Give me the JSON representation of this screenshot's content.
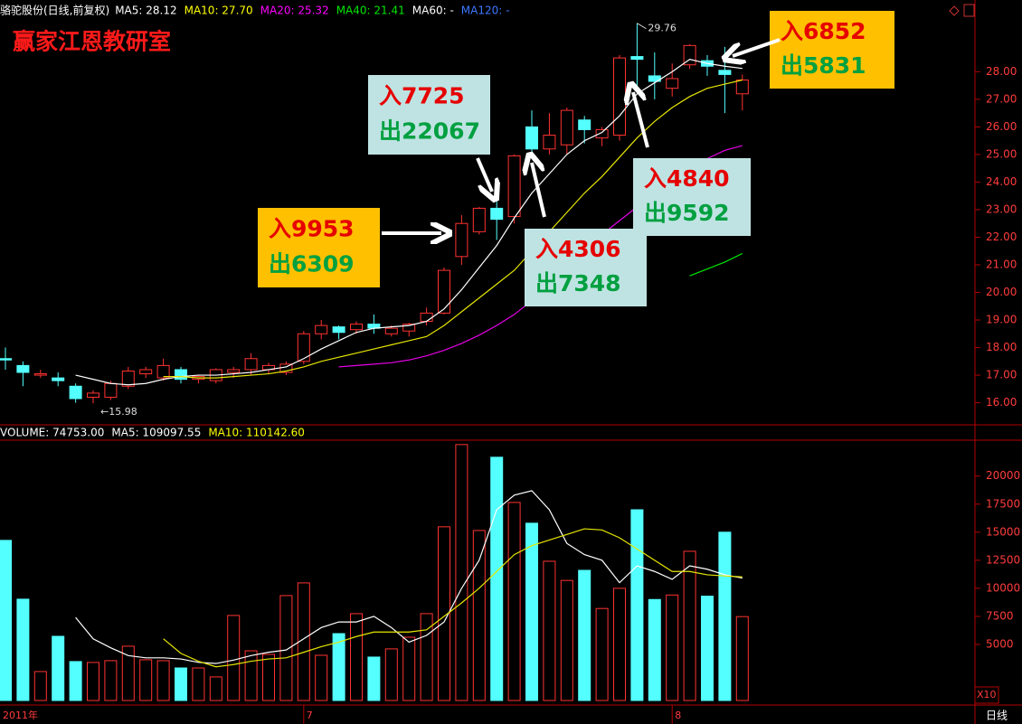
{
  "header": {
    "stock": "骆驼股份(日线,前复权)",
    "studio": "赢家江恩教研室",
    "period": "日线"
  },
  "chart_data": [
    {
      "type": "candlestick",
      "categories": [
        "2011年",
        null,
        null,
        null,
        null,
        null,
        null,
        null,
        null,
        null,
        null,
        null,
        null,
        null,
        null,
        null,
        null,
        "7",
        null,
        null,
        null,
        null,
        null,
        null,
        null,
        null,
        null,
        null,
        null,
        null,
        null,
        null,
        null,
        null,
        null,
        null,
        null,
        null,
        "8",
        null,
        null,
        null,
        null
      ],
      "open": [
        17.6,
        17.35,
        17.0,
        16.9,
        16.6,
        16.2,
        16.2,
        16.6,
        17.05,
        16.9,
        17.2,
        16.85,
        16.8,
        17.1,
        17.2,
        17.2,
        17.1,
        17.5,
        18.5,
        18.75,
        18.65,
        18.85,
        18.5,
        18.6,
        18.95,
        19.25,
        21.3,
        22.2,
        23.05,
        22.75,
        26.0,
        25.2,
        25.35,
        26.25,
        25.6,
        25.7,
        28.55,
        27.85,
        27.4,
        28.25,
        28.4,
        28.05,
        27.2
      ],
      "high": [
        18.0,
        17.5,
        17.2,
        17.1,
        16.7,
        16.45,
        16.8,
        17.3,
        17.3,
        17.6,
        17.3,
        17.0,
        17.25,
        17.3,
        17.8,
        17.45,
        17.5,
        18.6,
        19.0,
        18.8,
        18.95,
        19.2,
        18.8,
        18.9,
        19.45,
        20.9,
        22.8,
        23.1,
        23.4,
        25.0,
        26.6,
        26.5,
        26.7,
        26.4,
        26.0,
        28.6,
        29.76,
        28.7,
        28.3,
        29.0,
        28.6,
        28.9,
        27.9
      ],
      "low": [
        17.2,
        16.6,
        16.9,
        16.6,
        16.0,
        15.98,
        16.1,
        16.5,
        16.9,
        16.8,
        16.7,
        16.7,
        16.7,
        16.9,
        17.0,
        17.05,
        17.0,
        17.4,
        18.3,
        18.3,
        18.5,
        18.5,
        18.4,
        18.4,
        18.8,
        19.2,
        21.0,
        22.1,
        21.9,
        22.5,
        24.9,
        25.0,
        25.0,
        25.4,
        25.3,
        25.5,
        27.4,
        27.0,
        27.1,
        28.1,
        27.85,
        26.5,
        26.6
      ],
      "close": [
        17.55,
        17.1,
        17.05,
        16.8,
        16.15,
        16.35,
        16.7,
        17.15,
        17.2,
        17.35,
        16.85,
        16.95,
        17.2,
        17.2,
        17.6,
        17.35,
        17.4,
        18.5,
        18.8,
        18.55,
        18.85,
        18.7,
        18.7,
        18.85,
        19.25,
        20.8,
        22.5,
        23.05,
        22.65,
        24.95,
        25.2,
        25.7,
        26.6,
        25.9,
        25.9,
        28.5,
        28.45,
        27.65,
        27.75,
        28.95,
        28.2,
        27.9,
        27.7
      ],
      "up_color": "#ff3232",
      "down_color": "#54ffff",
      "legend": [
        {
          "text": "MA5: 28.12",
          "color": "#ffffff"
        },
        {
          "text": "MA10: 27.70",
          "color": "#ffff00"
        },
        {
          "text": "MA20: 25.32",
          "color": "#ff00ff"
        },
        {
          "text": "MA40: 21.41",
          "color": "#00e600"
        },
        {
          "text": "MA60: -",
          "color": "#ffffff"
        },
        {
          "text": "MA120: -",
          "color": "#3c78ff"
        }
      ],
      "lines": [
        {
          "color": "#ffffff",
          "values": [
            null,
            null,
            null,
            null,
            17.0,
            16.85,
            16.7,
            16.65,
            16.7,
            16.85,
            16.95,
            17.0,
            17.0,
            17.05,
            17.1,
            17.2,
            17.3,
            17.6,
            17.95,
            18.25,
            18.55,
            18.7,
            18.75,
            18.8,
            18.95,
            19.4,
            20.1,
            20.9,
            21.7,
            22.7,
            23.6,
            24.3,
            25.0,
            25.5,
            25.8,
            26.4,
            27.2,
            27.6,
            28.0,
            28.45,
            28.3,
            28.2,
            28.12
          ]
        },
        {
          "color": "#e6e600",
          "values": [
            null,
            null,
            null,
            null,
            null,
            null,
            null,
            null,
            null,
            16.95,
            16.95,
            16.9,
            16.9,
            16.95,
            17.0,
            17.05,
            17.15,
            17.3,
            17.5,
            17.65,
            17.8,
            17.95,
            18.1,
            18.25,
            18.4,
            18.8,
            19.3,
            19.8,
            20.3,
            20.8,
            21.5,
            22.2,
            22.9,
            23.6,
            24.2,
            24.9,
            25.6,
            26.2,
            26.7,
            27.1,
            27.4,
            27.55,
            27.7
          ]
        },
        {
          "color": "#e600e6",
          "values": [
            null,
            null,
            null,
            null,
            null,
            null,
            null,
            null,
            null,
            null,
            null,
            null,
            null,
            null,
            null,
            null,
            null,
            null,
            null,
            17.3,
            17.35,
            17.4,
            17.45,
            17.55,
            17.7,
            17.9,
            18.15,
            18.45,
            18.8,
            19.2,
            19.7,
            20.3,
            20.9,
            21.5,
            22.1,
            22.6,
            23.1,
            23.6,
            24.1,
            24.5,
            24.85,
            25.15,
            25.32
          ]
        },
        {
          "color": "#00e600",
          "values": [
            null,
            null,
            null,
            null,
            null,
            null,
            null,
            null,
            null,
            null,
            null,
            null,
            null,
            null,
            null,
            null,
            null,
            null,
            null,
            null,
            null,
            null,
            null,
            null,
            null,
            null,
            null,
            null,
            null,
            null,
            null,
            null,
            null,
            null,
            null,
            null,
            null,
            null,
            null,
            20.6,
            20.85,
            21.1,
            21.41
          ]
        }
      ],
      "ylim": [
        15.2,
        30.6
      ],
      "yticks": [
        {
          "value": 16,
          "label": "16.00"
        },
        {
          "value": 17,
          "label": "17.00"
        },
        {
          "value": 18,
          "label": "18.00"
        },
        {
          "value": 19,
          "label": "19.00"
        },
        {
          "value": 20,
          "label": "20.00"
        },
        {
          "value": 21,
          "label": "21.00"
        },
        {
          "value": 22,
          "label": "22.00"
        },
        {
          "value": 23,
          "label": "23.00"
        },
        {
          "value": 24,
          "label": "24.00"
        },
        {
          "value": 25,
          "label": "25.00"
        },
        {
          "value": 26,
          "label": "26.00"
        },
        {
          "value": 27,
          "label": "27.00"
        },
        {
          "value": 28,
          "label": "28.00"
        }
      ],
      "high_label": "29.76",
      "low_label": "←15.98",
      "annotations": [
        {
          "in": "入9953",
          "out": "出6309",
          "color": "#ffc000"
        },
        {
          "in": "入7725",
          "out": "出22067",
          "color": "#bfe3e3"
        },
        {
          "in": "入4306",
          "out": "出7348",
          "color": "#bfe3e3"
        },
        {
          "in": "入4840",
          "out": "出9592",
          "color": "#bfe3e3"
        },
        {
          "in": "入6852",
          "out": "出5831",
          "color": "#ffc000"
        }
      ]
    },
    {
      "type": "volume",
      "values": [
        14270,
        9030,
        2580,
        5720,
        3470,
        3390,
        3550,
        4840,
        3630,
        3550,
        2900,
        2900,
        2100,
        7580,
        4430,
        4110,
        9350,
        10480,
        4030,
        5960,
        7740,
        3870,
        4600,
        5640,
        7740,
        15480,
        22810,
        15150,
        21680,
        17650,
        15800,
        12410,
        10700,
        11600,
        8200,
        10000,
        17000,
        9000,
        9400,
        13300,
        9300,
        15000,
        7475
      ],
      "legend": [
        {
          "text": "VOLUME: 74753.00",
          "color": "#ffffff"
        },
        {
          "text": "MA5: 109097.55",
          "color": "#ffffff"
        },
        {
          "text": "MA10: 110142.60",
          "color": "#ffff00"
        }
      ],
      "lines": [
        {
          "color": "#ffffff",
          "values": [
            null,
            null,
            null,
            null,
            7400,
            5500,
            4700,
            4000,
            3800,
            3800,
            3700,
            3400,
            3300,
            3600,
            4000,
            4300,
            4500,
            5500,
            6500,
            7000,
            7000,
            7500,
            6500,
            5200,
            5800,
            7000,
            10000,
            12500,
            17000,
            18300,
            18700,
            17000,
            14000,
            13000,
            12500,
            10500,
            12000,
            11500,
            10800,
            12000,
            11700,
            11200,
            10910
          ]
        },
        {
          "color": "#e6e600",
          "values": [
            null,
            null,
            null,
            null,
            null,
            null,
            null,
            null,
            null,
            5500,
            4200,
            3500,
            3000,
            3200,
            3500,
            3700,
            3800,
            4300,
            4800,
            5200,
            5700,
            6100,
            6100,
            6100,
            6300,
            7500,
            8700,
            10000,
            11500,
            13000,
            13800,
            14300,
            14800,
            15300,
            15200,
            14500,
            13500,
            12500,
            11500,
            11500,
            11200,
            11100,
            11014
          ]
        }
      ],
      "ylim": [
        0,
        23200
      ],
      "yticks": [
        5000,
        7500,
        10000,
        12500,
        15000,
        17500,
        20000
      ],
      "multiplier": "X10"
    }
  ]
}
